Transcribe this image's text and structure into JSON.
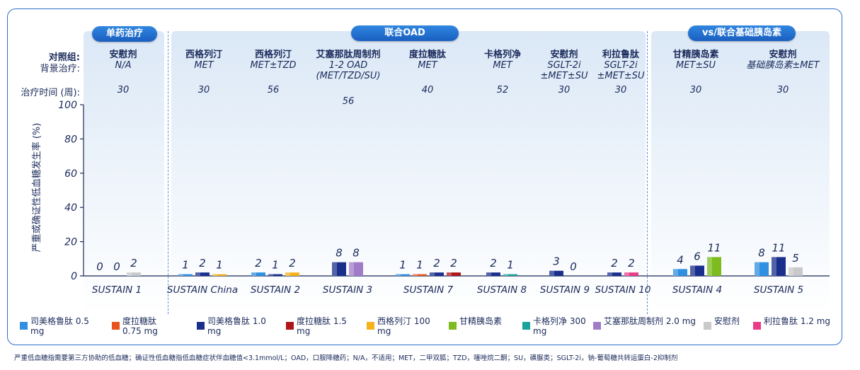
{
  "groups": [
    {
      "label": "单药治疗"
    },
    {
      "label": "联合OAD"
    },
    {
      "label": "vs/联合基础胰岛素"
    }
  ],
  "row_labels": {
    "comparator": "对照组:",
    "background": "背景治疗:",
    "duration": "治疗时间 (周):"
  },
  "trials": [
    {
      "comparator": "安慰剂",
      "background": "N/A",
      "weeks": "30"
    },
    {
      "comparator": "西格列汀",
      "background": "MET",
      "weeks": "30"
    },
    {
      "comparator": "西格列汀",
      "background": "MET±TZD",
      "weeks": "56"
    },
    {
      "comparator": "艾塞那肽周制剂",
      "background": "1-2 OAD (MET/TZD/SU)",
      "weeks": "56"
    },
    {
      "comparator": "度拉糖肽",
      "background": "MET",
      "weeks": "40"
    },
    {
      "comparator": "卡格列净",
      "background": "MET",
      "weeks": "52"
    },
    {
      "comparator": "安慰剂",
      "background": "SGLT-2i ±MET±SU",
      "weeks": "30"
    },
    {
      "comparator": "利拉鲁肽",
      "background": "SGLT-2i ±MET±SU",
      "weeks": "30"
    },
    {
      "comparator": "甘精胰岛素",
      "background": "MET±SU",
      "weeks": "30"
    },
    {
      "comparator": "安慰剂",
      "background": "基础胰岛素±MET",
      "weeks": "30"
    }
  ],
  "colors": {
    "sema05": "#2f8fe0",
    "dula075": "#e8531e",
    "sema10": "#1a2f8c",
    "dula15": "#b01418",
    "sita": "#f5b21a",
    "glargine": "#7dbb1e",
    "cana": "#1aa39a",
    "exen": "#a07cc8",
    "placebo": "#c9c9c9",
    "lira": "#ea3c86"
  },
  "chart_data": {
    "type": "bar",
    "ylabel": "严重或确证性低血糖发生率 (%)",
    "ylim": [
      0,
      100
    ],
    "yticks": [
      "0",
      "20",
      "40",
      "60",
      "80",
      "100"
    ],
    "categories": [
      "SUSTAIN 1",
      "SUSTAIN China",
      "SUSTAIN 2",
      "SUSTAIN 3",
      "SUSTAIN 7",
      "SUSTAIN 8",
      "SUSTAIN 9",
      "SUSTAIN 10",
      "SUSTAIN 4",
      "SUSTAIN 5"
    ],
    "clusters": [
      [
        {
          "key": "sema05",
          "value": 0
        },
        {
          "key": "sema10",
          "value": 0
        },
        {
          "key": "placebo",
          "value": 2
        }
      ],
      [
        {
          "key": "sema05",
          "value": 1
        },
        {
          "key": "sema10",
          "value": 2
        },
        {
          "key": "sita",
          "value": 1
        }
      ],
      [
        {
          "key": "sema05",
          "value": 2
        },
        {
          "key": "sema10",
          "value": 1
        },
        {
          "key": "sita",
          "value": 2
        }
      ],
      [
        {
          "key": "sema10",
          "value": 8
        },
        {
          "key": "exen",
          "value": 8
        }
      ],
      [
        {
          "key": "sema05",
          "value": 1
        },
        {
          "key": "dula075",
          "value": 1
        },
        {
          "key": "sema10",
          "value": 2
        },
        {
          "key": "dula15",
          "value": 2
        }
      ],
      [
        {
          "key": "sema10",
          "value": 2
        },
        {
          "key": "cana",
          "value": 1
        }
      ],
      [
        {
          "key": "sema10",
          "value": 3
        },
        {
          "key": "placebo",
          "value": 0
        }
      ],
      [
        {
          "key": "sema10",
          "value": 2
        },
        {
          "key": "lira",
          "value": 2
        }
      ],
      [
        {
          "key": "sema05",
          "value": 4
        },
        {
          "key": "sema10",
          "value": 6
        },
        {
          "key": "glargine",
          "value": 11
        }
      ],
      [
        {
          "key": "sema05",
          "value": 8
        },
        {
          "key": "sema10",
          "value": 11
        },
        {
          "key": "placebo",
          "value": 5
        }
      ]
    ],
    "legend": [
      {
        "key": "sema05",
        "label": "司美格鲁肽 0.5 mg"
      },
      {
        "key": "dula075",
        "label": "度拉糖肽 0.75 mg"
      },
      {
        "key": "sema10",
        "label": "司美格鲁肽 1.0 mg"
      },
      {
        "key": "dula15",
        "label": "度拉糖肽 1.5 mg"
      },
      {
        "key": "sita",
        "label": "西格列汀 100 mg"
      },
      {
        "key": "glargine",
        "label": "甘精胰岛素"
      },
      {
        "key": "cana",
        "label": "卡格列净 300 mg"
      },
      {
        "key": "exen",
        "label": "艾塞那肽周制剂 2.0 mg"
      },
      {
        "key": "placebo",
        "label": "安慰剂"
      },
      {
        "key": "lira",
        "label": "利拉鲁肽 1.2 mg"
      }
    ]
  },
  "footnote": "严重低血糖指需要第三方协助的低血糖；确证性低血糖指低血糖症状伴血糖值<3.1mmol/L；OAD，口服降糖药；N/A，不适用；MET，二甲双胍；TZD，噻唑烷二酮；SU，磺脲类；SGLT-2i，钠-葡萄糖共转运蛋白-2抑制剂"
}
